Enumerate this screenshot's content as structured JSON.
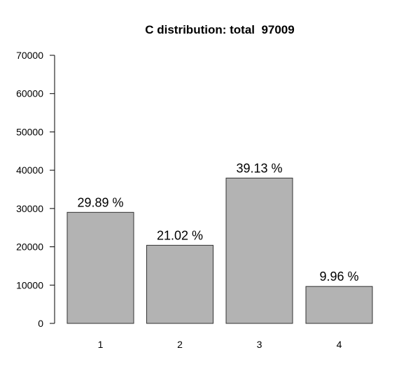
{
  "chart_data": {
    "type": "bar",
    "title": "C distribution: total  97009",
    "categories": [
      "1",
      "2",
      "3",
      "4"
    ],
    "values": [
      29000,
      20400,
      37950,
      9650
    ],
    "bar_labels": [
      "29.89 %",
      "21.02 %",
      "39.13 %",
      "9.96 %"
    ],
    "y_ticks": [
      0,
      10000,
      20000,
      30000,
      40000,
      50000,
      60000,
      70000
    ],
    "y_tick_labels": [
      "0",
      "10000",
      "20000",
      "30000",
      "40000",
      "50000",
      "60000",
      "70000"
    ],
    "ylim": [
      0,
      70000
    ],
    "xlabel": "",
    "ylabel": "",
    "grid": false,
    "legend": "none",
    "colors": {
      "bar_fill": "#b3b3b3",
      "bar_stroke": "#333333",
      "background": "#ffffff"
    }
  }
}
